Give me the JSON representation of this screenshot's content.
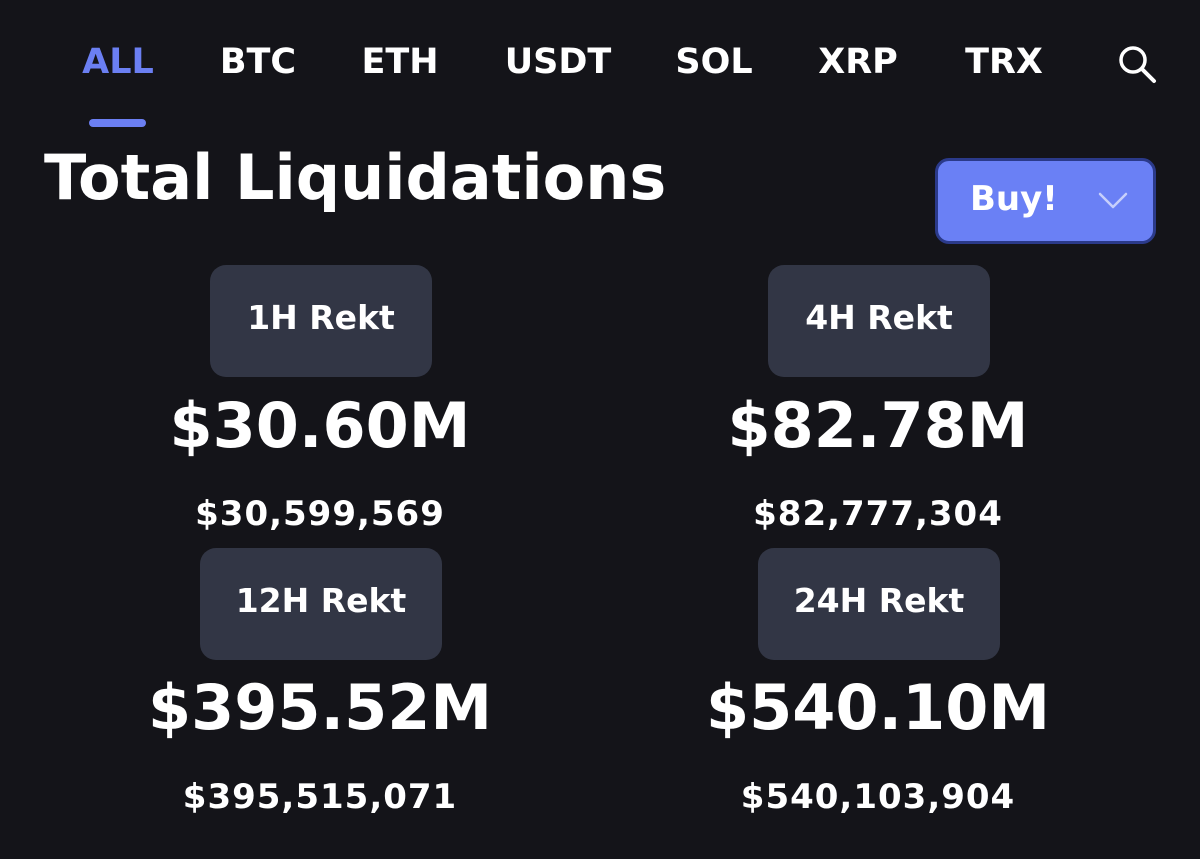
{
  "tabs": [
    {
      "label": "ALL",
      "active": true
    },
    {
      "label": "BTC",
      "active": false
    },
    {
      "label": "ETH",
      "active": false
    },
    {
      "label": "USDT",
      "active": false
    },
    {
      "label": "SOL",
      "active": false
    },
    {
      "label": "XRP",
      "active": false
    },
    {
      "label": "TRX",
      "active": false
    }
  ],
  "search_icon": "search-icon",
  "title": "Total Liquidations",
  "buy_button": {
    "label": "Buy!",
    "icon": "chevron-down-icon"
  },
  "colors": {
    "background": "#141419",
    "accent": "#6b7ff2",
    "pill": "#323645",
    "text": "#ffffff"
  },
  "stats": [
    {
      "label": "1H Rekt",
      "value": "$30.60M",
      "exact": "$30,599,569"
    },
    {
      "label": "4H Rekt",
      "value": "$82.78M",
      "exact": "$82,777,304"
    },
    {
      "label": "12H Rekt",
      "value": "$395.52M",
      "exact": "$395,515,071"
    },
    {
      "label": "24H Rekt",
      "value": "$540.10M",
      "exact": "$540,103,904"
    }
  ]
}
